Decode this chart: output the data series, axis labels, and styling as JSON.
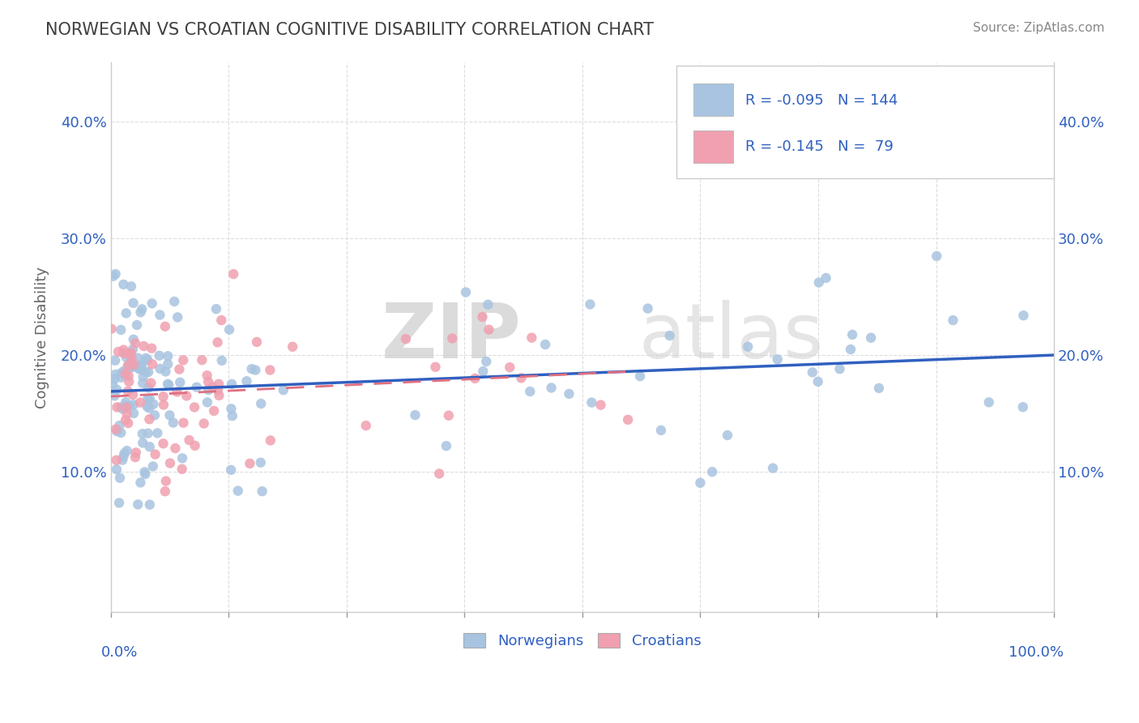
{
  "title": "NORWEGIAN VS CROATIAN COGNITIVE DISABILITY CORRELATION CHART",
  "source": "Source: ZipAtlas.com",
  "ylabel": "Cognitive Disability",
  "xlim": [
    0.0,
    1.0
  ],
  "ylim": [
    -0.02,
    0.45
  ],
  "yticks": [
    0.1,
    0.2,
    0.3,
    0.4
  ],
  "ytick_labels": [
    "10.0%",
    "20.0%",
    "30.0%",
    "40.0%"
  ],
  "legend_r_norwegian": "-0.095",
  "legend_n_norwegian": "144",
  "legend_r_croatian": "-0.145",
  "legend_n_croatian": "79",
  "norwegian_color": "#a8c4e0",
  "croatian_color": "#f0a0b0",
  "line_norwegian_color": "#3060c0",
  "line_croatian_color": "#e07080",
  "legend_text_color": "#3060c0",
  "title_color": "#404040",
  "watermark_zip": "ZIP",
  "watermark_atlas": "atlas",
  "background_color": "#ffffff",
  "plot_bg_color": "#ffffff",
  "seed_norwegian": 42,
  "seed_croatian": 123,
  "R_norwegian": -0.095,
  "N_norwegian": 144,
  "R_croatian": -0.145,
  "N_croatian": 79
}
